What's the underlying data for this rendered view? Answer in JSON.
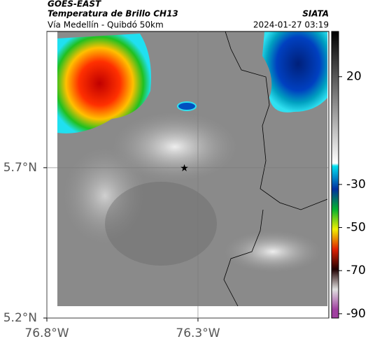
{
  "header": {
    "source": "GOES-EAST",
    "product": "Temperatura de Brillo CH13",
    "agency": "SIATA",
    "route": "Vía Medellín - Quibdó 50km",
    "timestamp": "2024-01-27 03:19"
  },
  "map": {
    "xlim": [
      -76.8,
      -75.867
    ],
    "ylim": [
      5.2,
      6.153
    ],
    "xticks": [
      {
        "value": -76.8,
        "label": "76.8°W"
      },
      {
        "value": -76.3,
        "label": "76.3°W"
      }
    ],
    "yticks": [
      {
        "value": 5.2,
        "label": "5.2°N"
      },
      {
        "value": 5.7,
        "label": "5.7°N"
      }
    ],
    "marker": [
      -76.345,
      5.7
    ]
  },
  "colorbar": {
    "lim": [
      -92,
      41
    ],
    "ticks": [
      20,
      -30,
      -50,
      -70,
      -90
    ]
  }
}
